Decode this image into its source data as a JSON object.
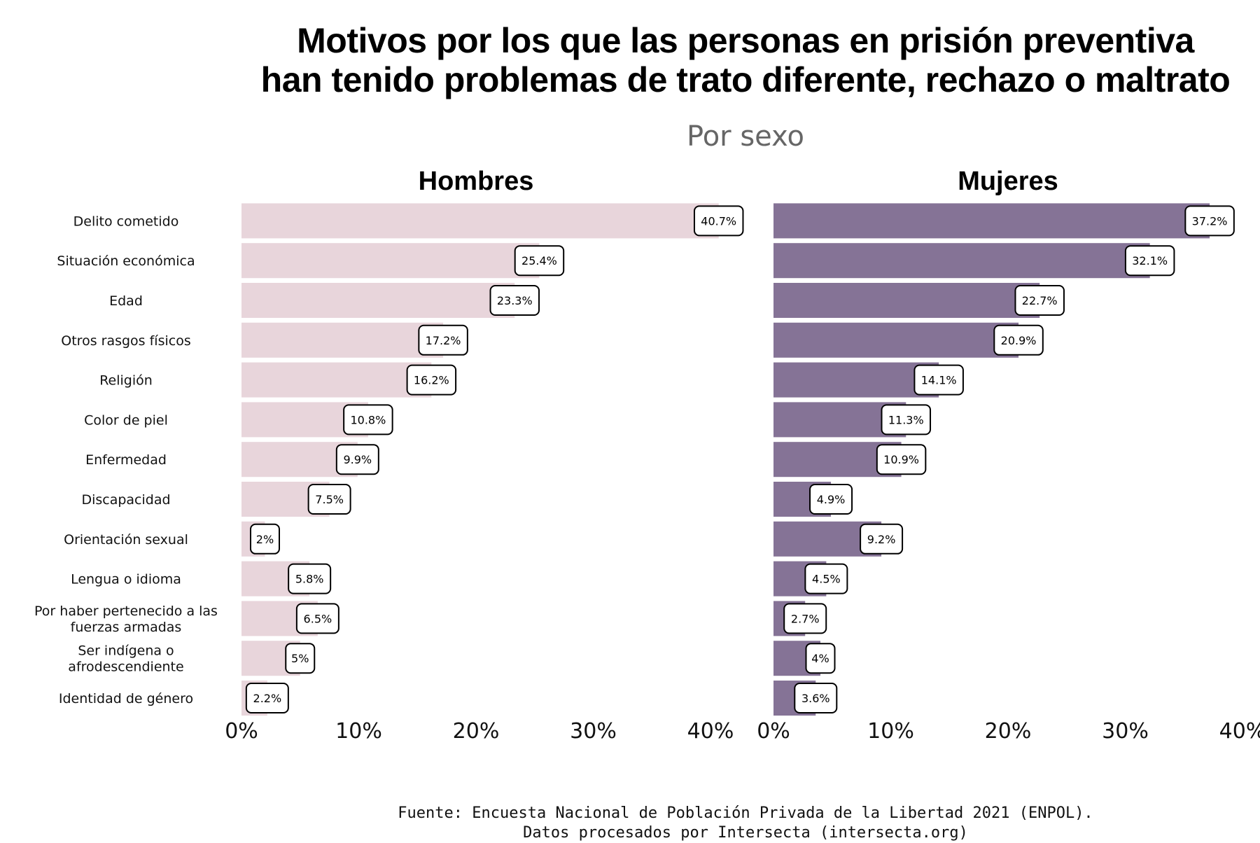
{
  "title_line1": "Motivos por los que las personas en prisión preventiva",
  "title_line2": "han tenido problemas de trato diferente, rechazo o maltrato",
  "subtitle": "Por sexo",
  "source_line1": "Fuente: Encuesta Nacional de Población Privada de la Libertad 2021 (ENPOL).",
  "source_line2": "Datos procesados por Intersecta (intersecta.org)",
  "chart_data": {
    "type": "bar",
    "orientation": "horizontal",
    "title": "Motivos por los que las personas en prisión preventiva han tenido problemas de trato diferente, rechazo o maltrato",
    "subtitle": "Por sexo",
    "categories": [
      "Delito cometido",
      "Situación económica",
      "Edad",
      "Otros rasgos físicos",
      "Religión",
      "Color de piel",
      "Enfermedad",
      "Discapacidad",
      "Orientación sexual",
      "Lengua o idioma",
      "Por haber pertenecido a las fuerzas armadas",
      "Ser indígena o afrodescendiente",
      "Identidad de género"
    ],
    "category_lines": [
      [
        "Delito cometido"
      ],
      [
        "Situación económica"
      ],
      [
        "Edad"
      ],
      [
        "Otros rasgos físicos"
      ],
      [
        "Religión"
      ],
      [
        "Color de piel"
      ],
      [
        "Enfermedad"
      ],
      [
        "Discapacidad"
      ],
      [
        "Orientación sexual"
      ],
      [
        "Lengua o idioma"
      ],
      [
        "Por haber pertenecido a las",
        "fuerzas armadas"
      ],
      [
        "Ser indígena o",
        "afrodescendiente"
      ],
      [
        "Identidad de género"
      ]
    ],
    "series": [
      {
        "name": "Hombres",
        "color": "#e8d5db",
        "values": [
          40.7,
          25.4,
          23.3,
          17.2,
          16.2,
          10.8,
          9.9,
          7.5,
          2,
          5.8,
          6.5,
          5,
          2.2
        ],
        "labels": [
          "40.7%",
          "25.4%",
          "23.3%",
          "17.2%",
          "16.2%",
          "10.8%",
          "9.9%",
          "7.5%",
          "2%",
          "5.8%",
          "6.5%",
          "5%",
          "2.2%"
        ]
      },
      {
        "name": "Mujeres",
        "color": "#857396",
        "values": [
          37.2,
          32.1,
          22.7,
          20.9,
          14.1,
          11.3,
          10.9,
          4.9,
          9.2,
          4.5,
          2.7,
          4,
          3.6
        ],
        "labels": [
          "37.2%",
          "32.1%",
          "22.7%",
          "20.9%",
          "14.1%",
          "11.3%",
          "10.9%",
          "4.9%",
          "9.2%",
          "4.5%",
          "2.7%",
          "4%",
          "3.6%"
        ]
      }
    ],
    "xlim": [
      0,
      40
    ],
    "xticks": [
      0,
      10,
      20,
      30,
      40
    ],
    "xtick_labels": [
      "0%",
      "10%",
      "20%",
      "30%",
      "40%"
    ],
    "grid": false,
    "legend": "none"
  }
}
